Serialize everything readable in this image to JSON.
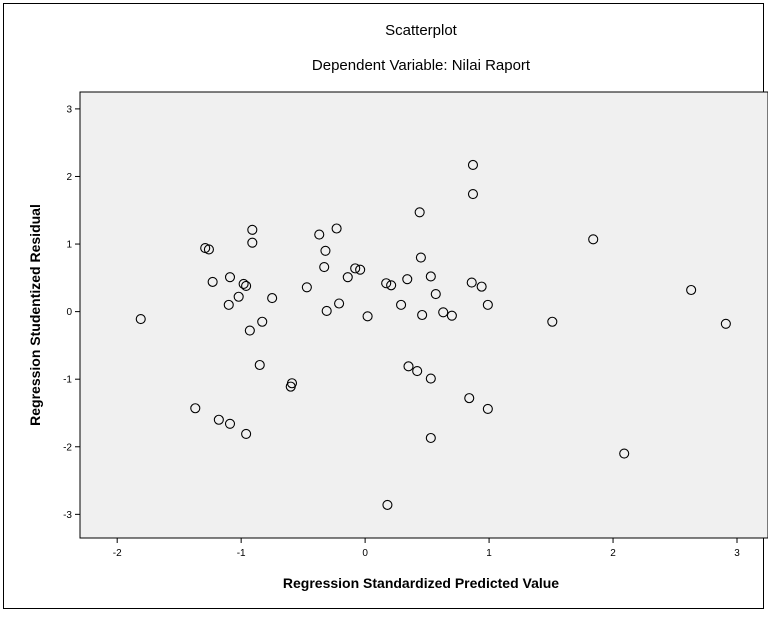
{
  "chart_data": {
    "type": "scatter",
    "title": "Scatterplot",
    "subtitle": "Dependent Variable: Nilai Raport",
    "xlabel": "Regression Standardized Predicted Value",
    "ylabel": "Regression Studentized Residual",
    "xlim": [
      -2.3,
      3.25
    ],
    "ylim": [
      -3.35,
      3.25
    ],
    "x_ticks": [
      -2,
      -1,
      0,
      1,
      2,
      3
    ],
    "y_ticks": [
      -3,
      -2,
      -1,
      0,
      1,
      2,
      3
    ],
    "x_tick_labels": [
      "-2",
      "-1",
      "0",
      "1",
      "2",
      "3"
    ],
    "y_tick_labels": [
      "-3",
      "-2",
      "-1",
      "0",
      "1",
      "2",
      "3"
    ],
    "grid": false,
    "plot_background": "#f0f0f0",
    "marker_color": "#000000",
    "points": [
      {
        "x": -1.81,
        "y": -0.11
      },
      {
        "x": -1.37,
        "y": -1.43
      },
      {
        "x": -1.29,
        "y": 0.94
      },
      {
        "x": -1.26,
        "y": 0.92
      },
      {
        "x": -1.23,
        "y": 0.44
      },
      {
        "x": -1.18,
        "y": -1.6
      },
      {
        "x": -1.1,
        "y": 0.1
      },
      {
        "x": -1.09,
        "y": 0.51
      },
      {
        "x": -1.09,
        "y": -1.66
      },
      {
        "x": -1.02,
        "y": 0.22
      },
      {
        "x": -0.98,
        "y": 0.41
      },
      {
        "x": -0.96,
        "y": 0.38
      },
      {
        "x": -0.96,
        "y": -1.81
      },
      {
        "x": -0.93,
        "y": -0.28
      },
      {
        "x": -0.91,
        "y": 1.21
      },
      {
        "x": -0.91,
        "y": 1.02
      },
      {
        "x": -0.85,
        "y": -0.79
      },
      {
        "x": -0.83,
        "y": -0.15
      },
      {
        "x": -0.75,
        "y": 0.2
      },
      {
        "x": -0.6,
        "y": -1.11
      },
      {
        "x": -0.59,
        "y": -1.06
      },
      {
        "x": -0.47,
        "y": 0.36
      },
      {
        "x": -0.37,
        "y": 1.14
      },
      {
        "x": -0.33,
        "y": 0.66
      },
      {
        "x": -0.32,
        "y": 0.9
      },
      {
        "x": -0.31,
        "y": 0.01
      },
      {
        "x": -0.23,
        "y": 1.23
      },
      {
        "x": -0.21,
        "y": 0.12
      },
      {
        "x": -0.14,
        "y": 0.51
      },
      {
        "x": -0.08,
        "y": 0.64
      },
      {
        "x": -0.04,
        "y": 0.62
      },
      {
        "x": 0.02,
        "y": -0.07
      },
      {
        "x": 0.17,
        "y": 0.42
      },
      {
        "x": 0.18,
        "y": -2.86
      },
      {
        "x": 0.21,
        "y": 0.39
      },
      {
        "x": 0.29,
        "y": 0.1
      },
      {
        "x": 0.34,
        "y": 0.48
      },
      {
        "x": 0.35,
        "y": -0.81
      },
      {
        "x": 0.42,
        "y": -0.88
      },
      {
        "x": 0.44,
        "y": 1.47
      },
      {
        "x": 0.45,
        "y": 0.8
      },
      {
        "x": 0.46,
        "y": -0.05
      },
      {
        "x": 0.53,
        "y": 0.52
      },
      {
        "x": 0.53,
        "y": -0.99
      },
      {
        "x": 0.53,
        "y": -1.87
      },
      {
        "x": 0.57,
        "y": 0.26
      },
      {
        "x": 0.63,
        "y": -0.01
      },
      {
        "x": 0.7,
        "y": -0.06
      },
      {
        "x": 0.84,
        "y": -1.28
      },
      {
        "x": 0.86,
        "y": 0.43
      },
      {
        "x": 0.87,
        "y": 2.17
      },
      {
        "x": 0.87,
        "y": 1.74
      },
      {
        "x": 0.94,
        "y": 0.37
      },
      {
        "x": 0.99,
        "y": 0.1
      },
      {
        "x": 0.99,
        "y": -1.44
      },
      {
        "x": 1.51,
        "y": -0.15
      },
      {
        "x": 1.84,
        "y": 1.07
      },
      {
        "x": 2.09,
        "y": -2.1
      },
      {
        "x": 2.63,
        "y": 0.32
      },
      {
        "x": 2.91,
        "y": -0.18
      }
    ]
  }
}
